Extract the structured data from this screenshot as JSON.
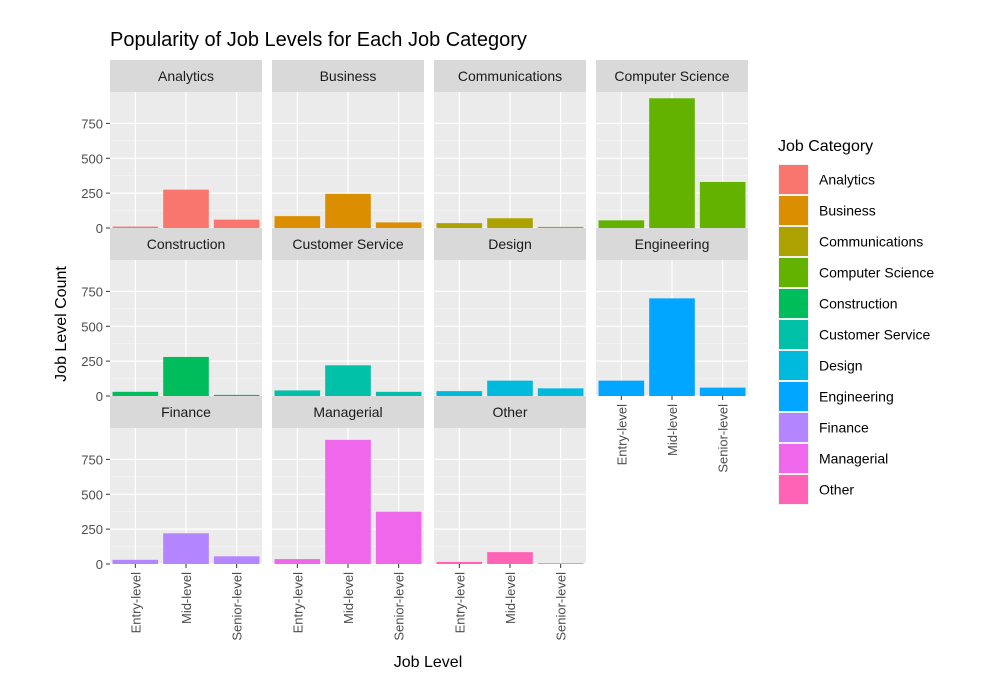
{
  "chart_data": {
    "type": "bar",
    "title": "Popularity of Job Levels for Each Job Category",
    "xlabel": "Job Level",
    "ylabel": "Job Level Count",
    "categories": [
      "Entry-level",
      "Mid-level",
      "Senior-level"
    ],
    "yticks": [
      0,
      250,
      500,
      750
    ],
    "ytick_labels": [
      "0",
      "250",
      "500",
      "750"
    ],
    "ylim": [
      0,
      975
    ],
    "grid": true,
    "legend_title": "Job Category",
    "legend_position": "right",
    "panels": [
      {
        "name": "Analytics",
        "color": "#F8766D",
        "values": [
          10,
          275,
          60
        ]
      },
      {
        "name": "Business",
        "color": "#DB8E00",
        "values": [
          85,
          245,
          40
        ]
      },
      {
        "name": "Communications",
        "color": "#AEA200",
        "values": [
          35,
          70,
          8
        ]
      },
      {
        "name": "Computer Science",
        "color": "#64B200",
        "values": [
          55,
          930,
          330
        ]
      },
      {
        "name": "Construction",
        "color": "#00BD5C",
        "values": [
          30,
          280,
          8
        ]
      },
      {
        "name": "Customer Service",
        "color": "#00C1A7",
        "values": [
          40,
          220,
          30
        ]
      },
      {
        "name": "Design",
        "color": "#00BADE",
        "values": [
          35,
          110,
          55
        ]
      },
      {
        "name": "Engineering",
        "color": "#00A6FF",
        "values": [
          110,
          700,
          60
        ]
      },
      {
        "name": "Finance",
        "color": "#B385FF",
        "values": [
          30,
          220,
          55
        ]
      },
      {
        "name": "Managerial",
        "color": "#EF67EB",
        "values": [
          35,
          890,
          375
        ]
      },
      {
        "name": "Other",
        "color": "#FF63B6",
        "values": [
          15,
          85,
          5
        ]
      }
    ]
  }
}
